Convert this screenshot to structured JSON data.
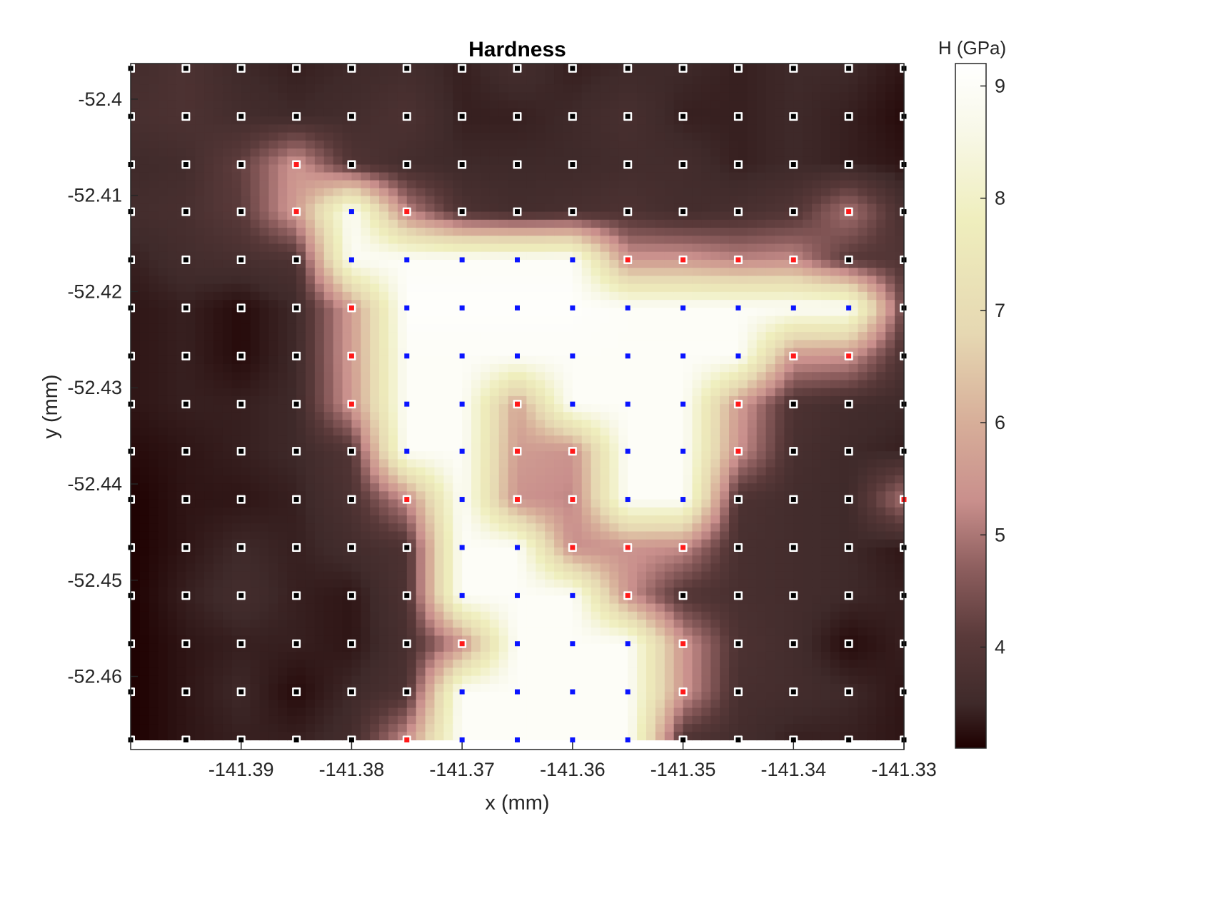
{
  "chart_data": {
    "type": "heatmap",
    "title": "Hardness",
    "xlabel": "x (mm)",
    "ylabel": "y (mm)",
    "colorbar_label": "H (GPa)",
    "xlim": [
      -141.4,
      -141.33
    ],
    "ylim": [
      -52.4676,
      -52.3963
    ],
    "x_ticks": [
      -141.39,
      -141.38,
      -141.37,
      -141.36,
      -141.35,
      -141.34,
      -141.33
    ],
    "x_tick_labels": [
      "-141.39",
      "-141.38",
      "-141.37",
      "-141.36",
      "-141.35",
      "-141.34",
      "-141.33"
    ],
    "y_ticks": [
      -52.4,
      -52.41,
      -52.42,
      -52.43,
      -52.44,
      -52.45,
      -52.46
    ],
    "y_tick_labels": [
      "-52.4",
      "-52.41",
      "-52.42",
      "-52.43",
      "-52.44",
      "-52.45",
      "-52.46"
    ],
    "colorbar_ticks": [
      4,
      5,
      6,
      7,
      8,
      9
    ],
    "colorbar_tick_labels": [
      "4",
      "5",
      "6",
      "7",
      "8",
      "9"
    ],
    "clim": [
      3.1,
      9.2
    ],
    "x": [
      -141.4,
      -141.395,
      -141.39,
      -141.385,
      -141.38,
      -141.375,
      -141.37,
      -141.365,
      -141.36,
      -141.355,
      -141.35,
      -141.345,
      -141.34,
      -141.335,
      -141.33
    ],
    "y": [
      -52.3968,
      -52.4018,
      -52.4068,
      -52.4117,
      -52.4167,
      -52.4217,
      -52.4267,
      -52.4317,
      -52.4366,
      -52.4416,
      -52.4466,
      -52.4516,
      -52.4566,
      -52.4616,
      -52.4666
    ],
    "z": [
      [
        3.6,
        3.8,
        3.5,
        3.4,
        3.5,
        3.6,
        3.4,
        3.6,
        3.4,
        3.5,
        3.5,
        3.4,
        3.5,
        3.5,
        3.3
      ],
      [
        3.7,
        3.8,
        3.6,
        3.5,
        3.6,
        3.8,
        3.4,
        3.4,
        3.5,
        3.7,
        3.4,
        3.4,
        3.5,
        3.4,
        3.2
      ],
      [
        3.5,
        3.6,
        4.2,
        5.5,
        3.9,
        3.6,
        3.5,
        3.5,
        3.5,
        3.6,
        3.6,
        3.4,
        3.5,
        3.4,
        3.3
      ],
      [
        3.6,
        3.7,
        4.1,
        5.6,
        9.0,
        5.2,
        3.8,
        3.6,
        3.7,
        3.8,
        3.6,
        3.7,
        3.9,
        5.0,
        3.7
      ],
      [
        3.4,
        3.6,
        3.7,
        3.8,
        8.9,
        9.0,
        9.0,
        9.0,
        9.0,
        5.5,
        5.5,
        5.2,
        5.3,
        4.0,
        3.9
      ],
      [
        3.3,
        3.4,
        3.2,
        3.5,
        5.6,
        9.1,
        9.1,
        9.1,
        9.1,
        9.0,
        9.0,
        9.0,
        9.0,
        9.0,
        4.2
      ],
      [
        3.3,
        3.4,
        3.2,
        3.5,
        5.6,
        9.0,
        9.0,
        9.0,
        9.0,
        9.0,
        9.0,
        9.0,
        5.5,
        5.4,
        3.8
      ],
      [
        3.3,
        3.4,
        3.4,
        3.5,
        5.5,
        9.0,
        9.0,
        5.8,
        9.0,
        9.0,
        9.0,
        5.6,
        3.8,
        3.6,
        3.5
      ],
      [
        3.2,
        3.3,
        3.4,
        3.5,
        3.9,
        9.0,
        9.0,
        5.6,
        5.4,
        9.0,
        9.0,
        5.4,
        3.7,
        3.5,
        3.4
      ],
      [
        3.1,
        3.3,
        3.3,
        3.4,
        3.8,
        5.3,
        9.0,
        5.4,
        5.2,
        9.0,
        9.0,
        3.8,
        3.6,
        3.5,
        5.0
      ],
      [
        3.1,
        3.3,
        3.5,
        3.4,
        3.6,
        3.8,
        9.0,
        9.0,
        5.3,
        5.4,
        5.3,
        3.7,
        3.6,
        3.5,
        3.3
      ],
      [
        3.1,
        3.4,
        3.6,
        3.4,
        3.3,
        3.8,
        9.0,
        9.0,
        9.0,
        5.4,
        3.9,
        3.7,
        3.6,
        3.5,
        3.4
      ],
      [
        3.1,
        3.3,
        3.4,
        3.4,
        3.3,
        3.7,
        5.4,
        9.0,
        9.0,
        9.0,
        5.5,
        3.8,
        3.6,
        3.2,
        3.4
      ],
      [
        3.1,
        3.3,
        3.5,
        3.2,
        3.5,
        3.8,
        9.0,
        9.0,
        9.0,
        9.0,
        5.5,
        3.7,
        3.6,
        3.5,
        3.3
      ],
      [
        3.1,
        3.3,
        3.4,
        3.4,
        3.6,
        5.4,
        9.0,
        9.0,
        9.0,
        9.0,
        3.8,
        3.6,
        3.4,
        3.4,
        3.3
      ]
    ],
    "colormap": [
      [
        3.1,
        "#1e0000"
      ],
      [
        3.5,
        "#3f2a2a"
      ],
      [
        4.1,
        "#5a3a3a"
      ],
      [
        4.7,
        "#8d5e5e"
      ],
      [
        5.3,
        "#c98f8c"
      ],
      [
        6.0,
        "#d7ae99"
      ],
      [
        6.8,
        "#e6d8b2"
      ],
      [
        7.8,
        "#efeebd"
      ],
      [
        8.6,
        "#f8f8e8"
      ],
      [
        9.2,
        "#ffffff"
      ]
    ],
    "marker_colors": {
      "soft": "#ffffff",
      "transition": "#ff1a1a",
      "hard": "#0a14ff"
    },
    "grid": false,
    "legend": "none"
  }
}
